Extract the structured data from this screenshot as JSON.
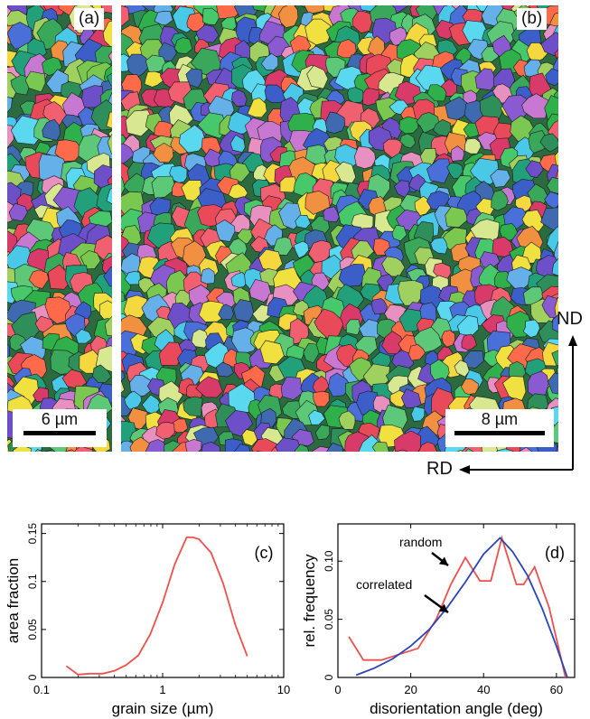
{
  "panel_a": {
    "label": "(a)",
    "scalebar": "6 µm"
  },
  "panel_b": {
    "label": "(b)",
    "scalebar": "8 µm"
  },
  "axes_labels": {
    "nd": "ND",
    "rd": "RD"
  },
  "colors": {
    "curve_red": "#f0504a",
    "curve_blue": "#2a45b8"
  },
  "chart_data": [
    {
      "type": "line",
      "panel_label": "(c)",
      "xlabel": "grain size (µm)",
      "ylabel": "area fraction",
      "x_scale": "log",
      "xlim": [
        0.1,
        10
      ],
      "ylim": [
        0,
        0.16
      ],
      "x_ticks": [
        0.1,
        1,
        10
      ],
      "x_tick_labels": [
        "0.1",
        "1",
        "10"
      ],
      "y_ticks": [
        0,
        0.05,
        0.1,
        0.15
      ],
      "y_tick_labels": [
        "0",
        "0.05",
        "0.1",
        "0.15"
      ],
      "grid": false,
      "series": [
        {
          "x": [
            0.16,
            0.2,
            0.25,
            0.32,
            0.4,
            0.5,
            0.63,
            0.79,
            1.0,
            1.26,
            1.58,
            1.78,
            2.0,
            2.51,
            3.16,
            3.98,
            5.0
          ],
          "values": [
            0.012,
            0.003,
            0.004,
            0.004,
            0.007,
            0.013,
            0.023,
            0.045,
            0.078,
            0.118,
            0.146,
            0.146,
            0.144,
            0.13,
            0.098,
            0.055,
            0.022
          ]
        }
      ]
    },
    {
      "type": "line",
      "panel_label": "(d)",
      "xlabel": "disorientation angle (deg)",
      "ylabel": "rel. frequency",
      "xlim": [
        0,
        65
      ],
      "ylim": [
        0,
        0.132
      ],
      "x_ticks": [
        0,
        20,
        40,
        60
      ],
      "x_tick_labels": [
        "0",
        "20",
        "40",
        "60"
      ],
      "y_ticks": [
        0,
        0.05,
        0.1
      ],
      "y_tick_labels": [
        "0",
        "0.05",
        "0.10"
      ],
      "grid": false,
      "annotations": [
        "random",
        "correlated"
      ],
      "series": [
        {
          "name": "correlated",
          "x": [
            3,
            7,
            12,
            17,
            22,
            27,
            31,
            35,
            39,
            42,
            45,
            49,
            51,
            54,
            58,
            62.5
          ],
          "values": [
            0.035,
            0.015,
            0.015,
            0.02,
            0.025,
            0.05,
            0.08,
            0.103,
            0.083,
            0.083,
            0.12,
            0.08,
            0.08,
            0.095,
            0.06,
            0.0
          ]
        },
        {
          "name": "random",
          "x": [
            5,
            10,
            15,
            20,
            25,
            30,
            35,
            40,
            44.5,
            48,
            52,
            56,
            60,
            63
          ],
          "values": [
            0.002,
            0.008,
            0.016,
            0.027,
            0.041,
            0.06,
            0.082,
            0.106,
            0.12,
            0.108,
            0.088,
            0.06,
            0.027,
            0.0
          ]
        }
      ]
    }
  ]
}
